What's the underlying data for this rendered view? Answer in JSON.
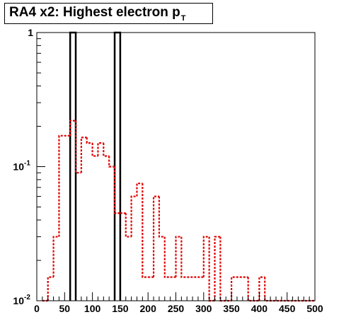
{
  "chart_data": {
    "type": "histogram",
    "title": {
      "main": "RA4 x2: Highest electron p",
      "subscript": "T"
    },
    "xlabel": "",
    "ylabel": "",
    "xlim": [
      0,
      500
    ],
    "ylim": [
      0.01,
      1
    ],
    "yscale": "log",
    "x_ticks": [
      0,
      50,
      100,
      150,
      200,
      250,
      300,
      350,
      400,
      450,
      500
    ],
    "y_ticks": [
      {
        "value": 1,
        "base": "1",
        "exp": ""
      },
      {
        "value": 0.1,
        "base": "10",
        "exp": "-1"
      },
      {
        "value": 0.01,
        "base": "10",
        "exp": "-2"
      }
    ],
    "series": [
      {
        "color": "#000000",
        "style": "solid",
        "bins": [
          {
            "x0": 60,
            "x1": 70,
            "y": 1
          },
          {
            "x0": 140,
            "x1": 150,
            "y": 1
          }
        ]
      },
      {
        "color": "#e00000",
        "style": "dotted",
        "bins": [
          {
            "x0": 10,
            "x1": 20,
            "y": 0.01
          },
          {
            "x0": 20,
            "x1": 30,
            "y": 0.015
          },
          {
            "x0": 30,
            "x1": 40,
            "y": 0.03
          },
          {
            "x0": 40,
            "x1": 60,
            "y": 0.17
          },
          {
            "x0": 60,
            "x1": 70,
            "y": 0.22
          },
          {
            "x0": 70,
            "x1": 80,
            "y": 0.09
          },
          {
            "x0": 80,
            "x1": 90,
            "y": 0.165
          },
          {
            "x0": 90,
            "x1": 100,
            "y": 0.15
          },
          {
            "x0": 100,
            "x1": 110,
            "y": 0.12
          },
          {
            "x0": 110,
            "x1": 120,
            "y": 0.15
          },
          {
            "x0": 120,
            "x1": 130,
            "y": 0.12
          },
          {
            "x0": 130,
            "x1": 140,
            "y": 0.1
          },
          {
            "x0": 140,
            "x1": 150,
            "y": 0.045
          },
          {
            "x0": 150,
            "x1": 160,
            "y": 0.045
          },
          {
            "x0": 160,
            "x1": 170,
            "y": 0.03
          },
          {
            "x0": 170,
            "x1": 180,
            "y": 0.06
          },
          {
            "x0": 180,
            "x1": 190,
            "y": 0.075
          },
          {
            "x0": 190,
            "x1": 200,
            "y": 0.015
          },
          {
            "x0": 200,
            "x1": 210,
            "y": 0.015
          },
          {
            "x0": 210,
            "x1": 220,
            "y": 0.06
          },
          {
            "x0": 220,
            "x1": 230,
            "y": 0.03
          },
          {
            "x0": 230,
            "x1": 240,
            "y": 0.015
          },
          {
            "x0": 240,
            "x1": 250,
            "y": 0.015
          },
          {
            "x0": 250,
            "x1": 260,
            "y": 0.03
          },
          {
            "x0": 260,
            "x1": 300,
            "y": 0.015
          },
          {
            "x0": 300,
            "x1": 310,
            "y": 0.03
          },
          {
            "x0": 310,
            "x1": 320,
            "y": 0.01
          },
          {
            "x0": 320,
            "x1": 330,
            "y": 0.03
          },
          {
            "x0": 330,
            "x1": 350,
            "y": 0.01
          },
          {
            "x0": 350,
            "x1": 380,
            "y": 0.015
          },
          {
            "x0": 380,
            "x1": 400,
            "y": 0.01
          },
          {
            "x0": 400,
            "x1": 410,
            "y": 0.015
          },
          {
            "x0": 410,
            "x1": 500,
            "y": 0.01
          }
        ]
      }
    ],
    "grid": false,
    "legend": "none"
  }
}
